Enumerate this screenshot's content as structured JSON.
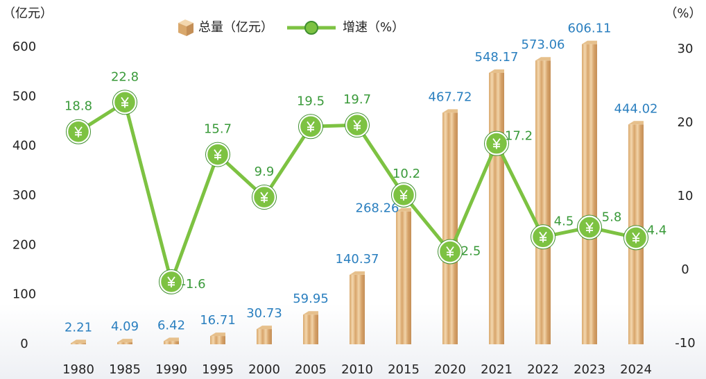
{
  "chart_data": {
    "type": "bar-line",
    "y_label": "（亿元）",
    "y2_label": "（%）",
    "categories": [
      "1980",
      "1985",
      "1990",
      "1995",
      "2000",
      "2005",
      "2010",
      "2015",
      "2020",
      "2021",
      "2022",
      "2023",
      "2024"
    ],
    "series": [
      {
        "name": "总量（亿元）",
        "color": "#e6c08c",
        "type": "bar",
        "values": [
          2.21,
          4.09,
          6.42,
          16.71,
          30.73,
          59.95,
          140.37,
          268.26,
          467.72,
          548.17,
          573.06,
          606.11,
          444.02
        ]
      },
      {
        "name": "增速（%）",
        "color": "#7dc242",
        "type": "line",
        "axis": "y2",
        "values": [
          18.8,
          22.8,
          -1.6,
          15.7,
          9.9,
          19.5,
          19.7,
          10.2,
          2.5,
          17.2,
          4.5,
          5.8,
          4.4
        ]
      }
    ],
    "ylim": [
      0,
      600
    ],
    "yticks": [
      0,
      100,
      200,
      300,
      400,
      500,
      600
    ],
    "y2lim": [
      -10,
      30
    ],
    "y2ticks": [
      -10,
      0,
      10,
      20,
      30
    ]
  }
}
